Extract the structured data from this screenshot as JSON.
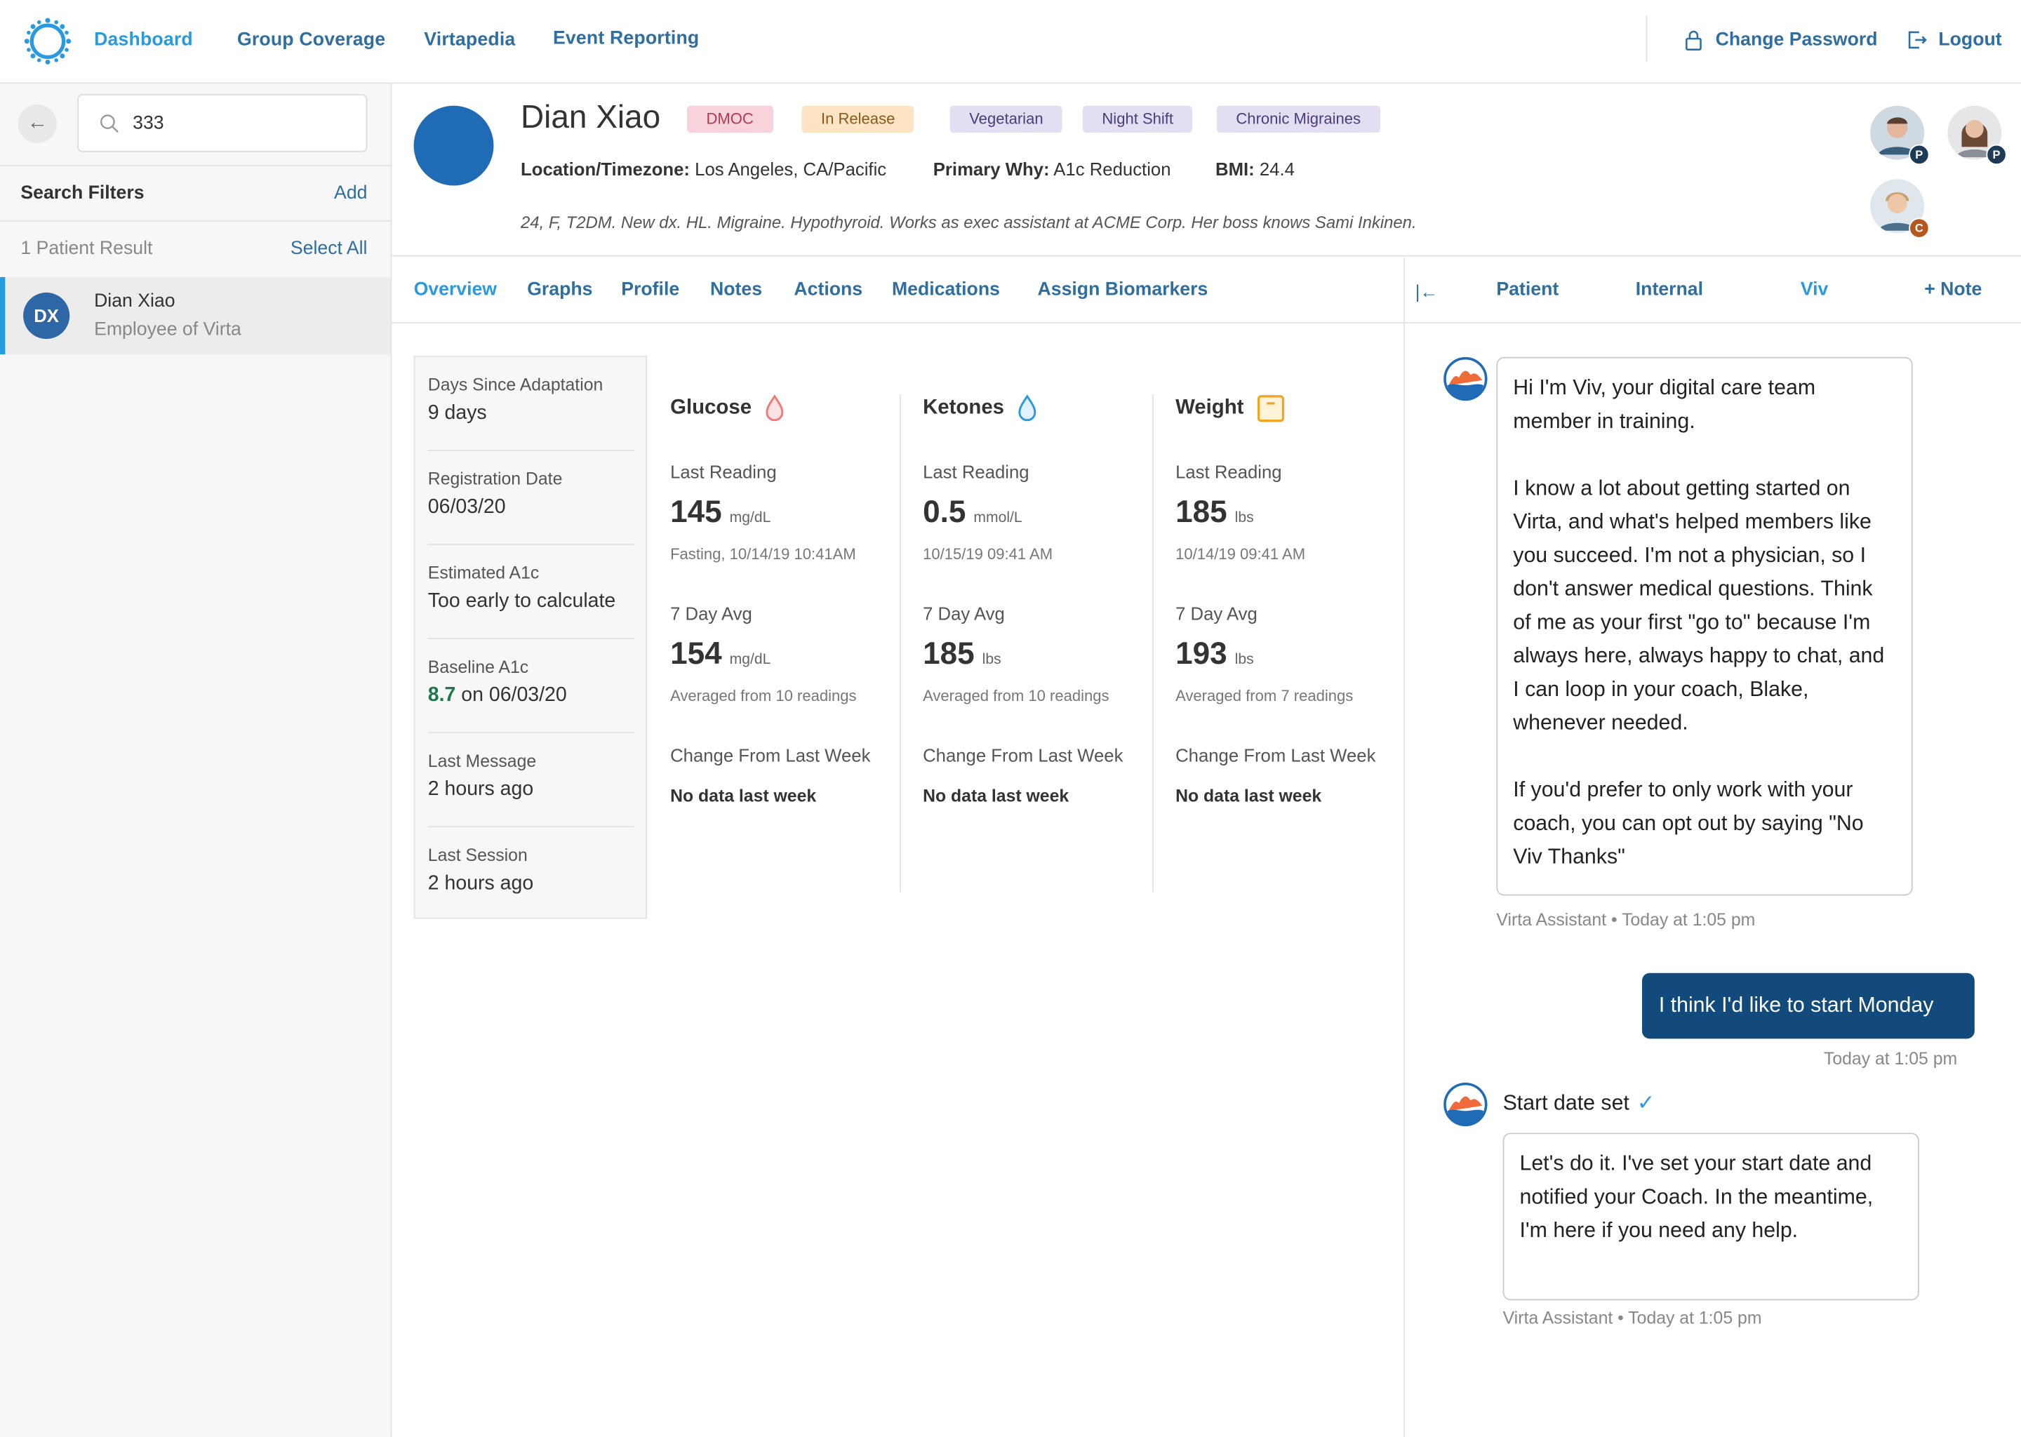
{
  "nav": {
    "links": [
      "Dashboard",
      "Group Coverage",
      "Virtapedia",
      "Event Reporting"
    ],
    "change_password": "Change Password",
    "logout": "Logout"
  },
  "sidebar": {
    "search_value": "333",
    "search_filters_label": "Search Filters",
    "add_label": "Add",
    "results_label": "1 Patient Result",
    "select_all_label": "Select All",
    "patient": {
      "initials": "DX",
      "name": "Dian Xiao",
      "subtitle": "Employee of Virta"
    }
  },
  "header": {
    "name": "Dian Xiao",
    "tags": [
      {
        "label": "DMOC",
        "bg": "#f8d3db",
        "fg": "#b03a53"
      },
      {
        "label": "In Release",
        "bg": "#fde4c4",
        "fg": "#8a5a18"
      },
      {
        "label": "Vegetarian",
        "bg": "#e4def3",
        "fg": "#4b3c7a"
      },
      {
        "label": "Night Shift",
        "bg": "#e4def3",
        "fg": "#4b3c7a"
      },
      {
        "label": "Chronic Migraines",
        "bg": "#e4def3",
        "fg": "#4b3c7a"
      }
    ],
    "location_label": "Location/Timezone:",
    "location_value": "Los Angeles, CA/Pacific",
    "why_label": "Primary Why:",
    "why_value": "A1c Reduction",
    "bmi_label": "BMI:",
    "bmi_value": "24.4",
    "description": "24, F, T2DM. New dx. HL. Migraine. Hypothyroid. Works as exec assistant at ACME Corp. Her boss knows Sami Inkinen.",
    "team": [
      {
        "badge": "P",
        "badge_color": "#1d3b57"
      },
      {
        "badge": "P",
        "badge_color": "#1d3b57"
      },
      {
        "badge": "C",
        "badge_color": "#b5581f"
      }
    ]
  },
  "tabs": [
    "Overview",
    "Graphs",
    "Profile",
    "Notes",
    "Actions",
    "Medications",
    "Assign Biomarkers"
  ],
  "right_tabs": [
    "Patient",
    "Internal",
    "Viv",
    "+ Note"
  ],
  "stats": [
    {
      "label": "Days Since Adaptation",
      "value": "9 days"
    },
    {
      "label": "Registration Date",
      "value": "06/03/20"
    },
    {
      "label": "Estimated A1c",
      "value": "Too early to calculate"
    },
    {
      "label": "Baseline A1c",
      "value_highlight": "8.7",
      "value_rest": " on 06/03/20"
    },
    {
      "label": "Last Message",
      "value": "2 hours ago"
    },
    {
      "label": "Last Session",
      "value": "2 hours ago"
    }
  ],
  "biomarkers": [
    {
      "title": "Glucose",
      "icon": "drop-red-icon",
      "last_label": "Last Reading",
      "last_value": "145",
      "last_unit": "mg/dL",
      "last_sub": "Fasting, 10/14/19 10:41AM",
      "avg_label": "7 Day Avg",
      "avg_value": "154",
      "avg_unit": "mg/dL",
      "avg_sub": "Averaged from 10 readings",
      "change_label": "Change From Last Week",
      "change_value": "No data last week"
    },
    {
      "title": "Ketones",
      "icon": "drop-blue-icon",
      "last_label": "Last Reading",
      "last_value": "0.5",
      "last_unit": "mmol/L",
      "last_sub": "10/15/19 09:41 AM",
      "avg_label": "7 Day Avg",
      "avg_value": "185",
      "avg_unit": "lbs",
      "avg_sub": "Averaged from 10 readings",
      "change_label": "Change From Last Week",
      "change_value": "No data last week"
    },
    {
      "title": "Weight",
      "icon": "scale-icon",
      "last_label": "Last Reading",
      "last_value": "185",
      "last_unit": "lbs",
      "last_sub": "10/14/19 09:41 AM",
      "avg_label": "7 Day Avg",
      "avg_value": "193",
      "avg_unit": "lbs",
      "avg_sub": "Averaged from 7 readings",
      "change_label": "Change From Last Week",
      "change_value": "No data last week"
    }
  ],
  "chat": {
    "msg1": [
      "Hi I'm Viv, your digital care team member in training.",
      "I know a lot about getting started on Virta, and what's helped members like you succeed. I'm not a physician, so I don't answer medical questions. Think of me as your first \"go to\" because I'm always here, always happy to chat, and I can loop in your coach, Blake, whenever needed.",
      "If you'd prefer to only work with your coach, you can opt out by saying \"No Viv Thanks\""
    ],
    "msg1_meta": "Virta Assistant • Today at 1:05 pm",
    "user_msg": "I think I'd like to start Monday",
    "user_meta": "Today at 1:05 pm",
    "start_label": "Start date set",
    "msg2": "Let's do it. I've set your start date and notified your Coach. In the meantime, I'm here if you need any help.",
    "msg2_meta": "Virta Assistant • Today at 1:05 pm"
  }
}
